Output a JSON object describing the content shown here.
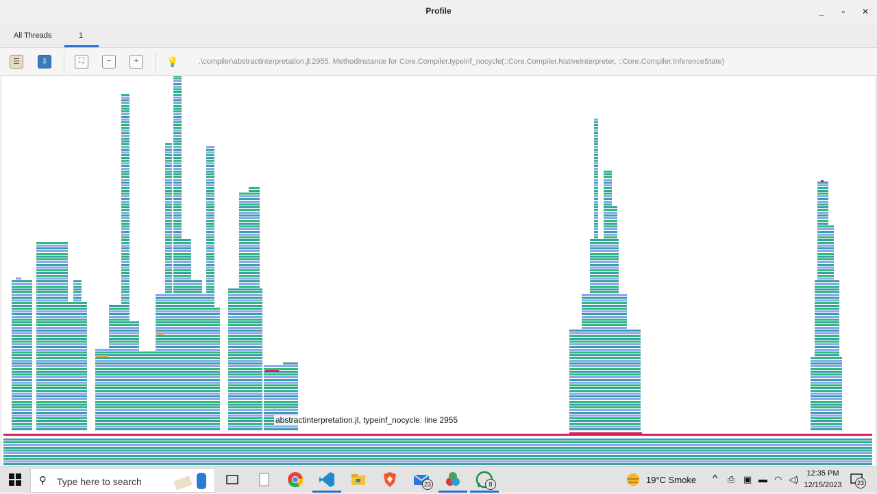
{
  "window": {
    "title": "Profile",
    "minimize": "_",
    "maximize": "▫",
    "close": "✕"
  },
  "tabs": [
    {
      "label": "All Threads"
    },
    {
      "label": "1"
    }
  ],
  "toolbar": {
    "status_path": ".\\compiler\\abstractinterpretation.jl:2955, MethodInstance for Core.Compiler.typeinf_nocycle(::Core.Compiler.NativeInterpreter, ::Core.Compiler.InferenceState)",
    "icons": [
      "flat-view-icon",
      "save-icon",
      "fit-icon",
      "zoom-out-icon",
      "zoom-in-icon",
      "lightbulb-icon"
    ]
  },
  "flamegraph": {
    "hover_label": "abstractinterpretation.jl, typeinf_nocycle: line 2955",
    "colors": {
      "teal": "#3a9ea8",
      "blue": "#8aa6f2",
      "green": "#2fb97a",
      "red": "#d81e5b",
      "orange": "#e8a24a"
    }
  },
  "taskbar": {
    "search_placeholder": "Type here to search",
    "mail_badge": "23",
    "whatsapp_badge": "8",
    "weather": "19°C  Smoke",
    "time": "12:35 PM",
    "date": "12/15/2023",
    "notifications_badge": "23"
  }
}
